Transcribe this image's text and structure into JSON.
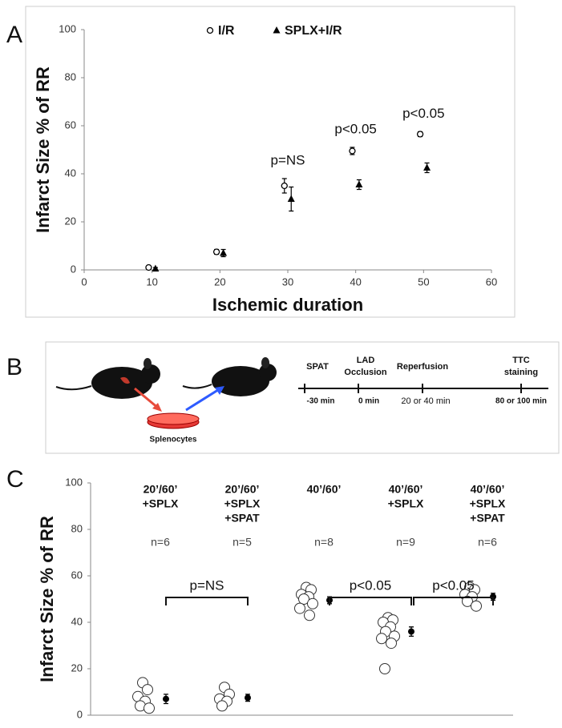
{
  "chart_data": [
    {
      "type": "scatter",
      "panel": "A",
      "xlabel": "Ischemic duration",
      "ylabel": "Infarct Size % of RR",
      "xlim": [
        0,
        60
      ],
      "xticks": [
        0,
        10,
        20,
        30,
        40,
        50,
        60
      ],
      "ylim": [
        0,
        100
      ],
      "yticks": [
        0,
        20,
        40,
        60,
        80,
        100
      ],
      "legend": "top",
      "series": [
        {
          "name": "I/R",
          "color": "#000000",
          "marker": "open-circle",
          "x": [
            9.5,
            19.5,
            29.5,
            39.5,
            49.5
          ],
          "values": [
            1,
            7.5,
            35,
            49.5,
            56.5
          ],
          "errors": [
            0.5,
            1,
            3,
            1.5,
            1
          ]
        },
        {
          "name": "SPLX+I/R",
          "color": "#000000",
          "marker": "triangle",
          "x": [
            10.5,
            20.5,
            30.5,
            40.5,
            50.5
          ],
          "values": [
            0.5,
            7,
            29.5,
            35.5,
            42.5
          ],
          "errors": [
            0.5,
            1.5,
            5,
            2,
            2
          ]
        }
      ],
      "annotations": [
        null,
        null,
        "p=NS",
        "p<0.05",
        "p<0.05"
      ]
    },
    {
      "type": "dotplot",
      "panel": "C",
      "ylabel": "Infarct Size % of RR",
      "ylim": [
        0,
        100
      ],
      "yticks": [
        0,
        20,
        40,
        60,
        80,
        100
      ],
      "categories": [
        [
          "20’/60’",
          "+SPLX"
        ],
        [
          "20’/60’",
          "+SPLX",
          "+SPAT"
        ],
        [
          "40’/60’"
        ],
        [
          "40’/60’",
          "+SPLX"
        ],
        [
          "40’/60’",
          "+SPLX",
          "+SPAT"
        ]
      ],
      "n_labels": [
        "n=6",
        "n=5",
        "n=8",
        "n=9",
        "n=6"
      ],
      "points": [
        [
          14,
          11,
          8,
          6,
          4,
          3
        ],
        [
          12,
          9,
          7,
          6,
          4
        ],
        [
          55,
          54,
          52,
          51,
          50,
          48,
          46,
          43
        ],
        [
          42,
          41,
          40,
          38,
          36,
          34,
          33,
          31,
          20
        ],
        [
          55,
          54,
          52,
          51,
          49,
          47
        ]
      ],
      "means": [
        7,
        7.5,
        49.5,
        36,
        51
      ],
      "errors": [
        2,
        1.5,
        1.5,
        2,
        1.5
      ],
      "color": "#000000",
      "comparison_labels": [
        null,
        "p=NS",
        null,
        "p<0.05",
        "p<0.05"
      ]
    }
  ],
  "diagram": {
    "panel": "B",
    "dish_label": "Splenocytes",
    "timeline": [
      {
        "label": [
          "SPAT"
        ],
        "time": "-30 min"
      },
      {
        "label": [
          "LAD",
          "Occlusion"
        ],
        "time": "0 min"
      },
      {
        "label": [
          "Reperfusion"
        ],
        "time": "20 or 40 min"
      },
      {
        "label": [
          "TTC",
          "staining"
        ],
        "time": "80 or 100 min"
      }
    ]
  }
}
